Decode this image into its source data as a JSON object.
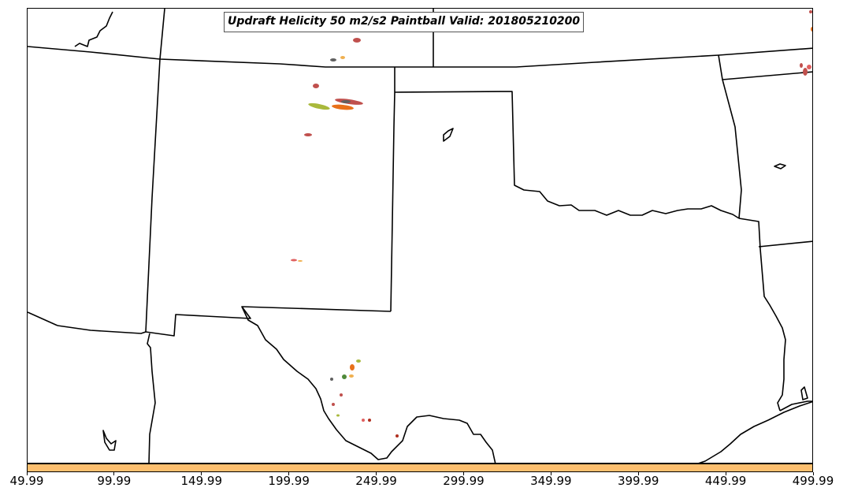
{
  "title": "Updraft Helicity 50 m2/s2 Paintball Valid: 201805210200",
  "colorbar": {
    "color": "#fdbf6f",
    "tick_labels": [
      "49.99",
      "99.99",
      "149.99",
      "199.99",
      "249.99",
      "299.99",
      "349.99",
      "399.99",
      "449.99",
      "499.99"
    ]
  },
  "paintball_colors": [
    "#c0504d",
    "#a9b93c",
    "#e8701a",
    "#4f8a3a",
    "#606060",
    "#f0b050",
    "#b03020",
    "#e06060"
  ]
}
